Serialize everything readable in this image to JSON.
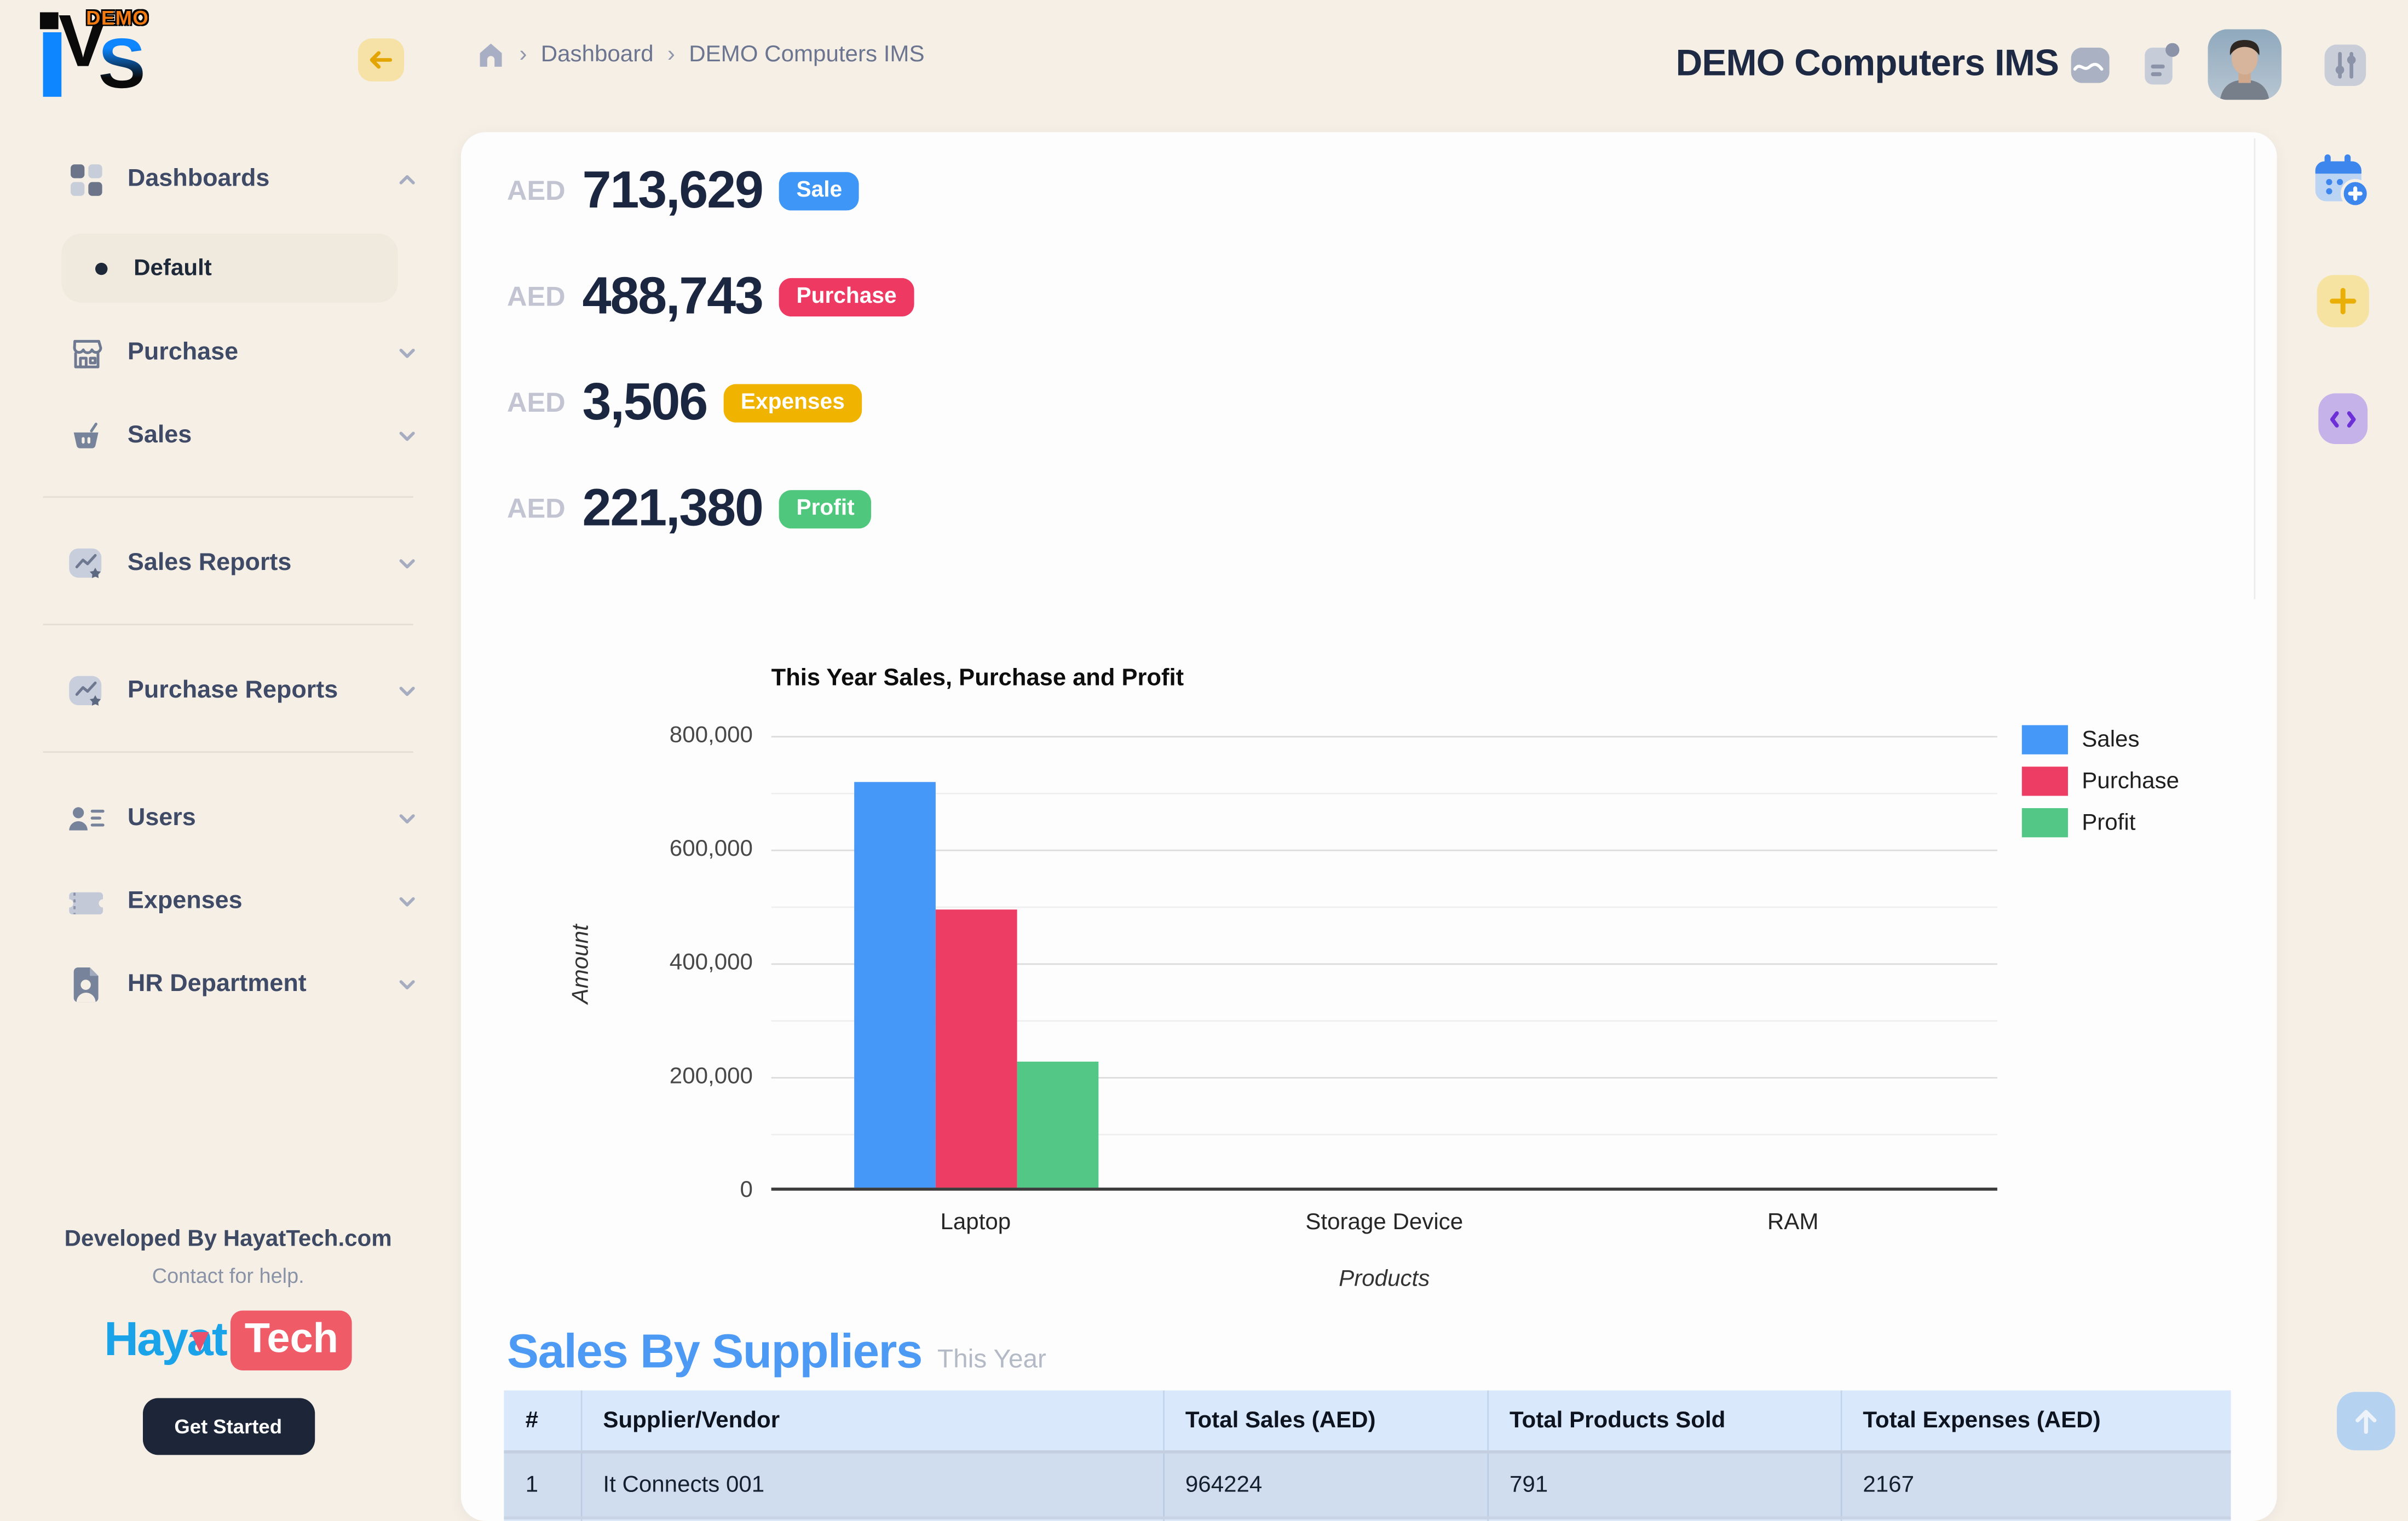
{
  "app": {
    "logo_text_i": "I",
    "logo_text_v": "V",
    "logo_text_s": "S",
    "logo_badge": "DEMO"
  },
  "header": {
    "breadcrumb": [
      {
        "label": "Dashboard"
      },
      {
        "label": "DEMO Computers IMS"
      }
    ],
    "title": "DEMO Computers IMS"
  },
  "sidebar": {
    "items": [
      {
        "label": "Dashboards"
      },
      {
        "label": "Default"
      },
      {
        "label": "Purchase"
      },
      {
        "label": "Sales"
      },
      {
        "label": "Sales Reports"
      },
      {
        "label": "Purchase Reports"
      },
      {
        "label": "Users"
      },
      {
        "label": "Expenses"
      },
      {
        "label": "HR Department"
      }
    ],
    "footer": {
      "developed_by": "Developed By HayatTech.com",
      "contact": "Contact for help.",
      "brand_primary": "Hayat",
      "brand_secondary": "Tech",
      "cta_label": "Get Started"
    }
  },
  "stats": [
    {
      "currency": "AED",
      "value": "713,629",
      "badge": "Sale",
      "color": "#3e96f7"
    },
    {
      "currency": "AED",
      "value": "488,743",
      "badge": "Purchase",
      "color": "#ee3a63"
    },
    {
      "currency": "AED",
      "value": "3,506",
      "badge": "Expenses",
      "color": "#f0b400"
    },
    {
      "currency": "AED",
      "value": "221,380",
      "badge": "Profit",
      "color": "#4fc87e"
    }
  ],
  "chart_data": {
    "type": "bar",
    "title": "This Year Sales, Purchase and Profit",
    "categories": [
      "Laptop",
      "Storage Device",
      "RAM"
    ],
    "series": [
      {
        "name": "Sales",
        "color": "#4598f8",
        "values": [
          713629,
          0,
          0
        ]
      },
      {
        "name": "Purchase",
        "color": "#ee3d64",
        "values": [
          488743,
          0,
          0
        ]
      },
      {
        "name": "Profit",
        "color": "#53c785",
        "values": [
          221380,
          0,
          0
        ]
      }
    ],
    "xlabel": "Products",
    "ylabel": "Amount",
    "ylim": [
      0,
      800000
    ],
    "yticks": [
      "0",
      "200,000",
      "400,000",
      "600,000",
      "800,000"
    ],
    "grid": "horizontal-major-and-minor",
    "legend_position": "right"
  },
  "suppliers": {
    "title": "Sales By Suppliers",
    "subtitle": "This Year",
    "headers": [
      "#",
      "Supplier/Vendor",
      "Total Sales (AED)",
      "Total Products Sold",
      "Total Expenses (AED)"
    ],
    "rows": [
      [
        "1",
        "It Connects 001",
        "964224",
        "791",
        "2167"
      ]
    ]
  }
}
